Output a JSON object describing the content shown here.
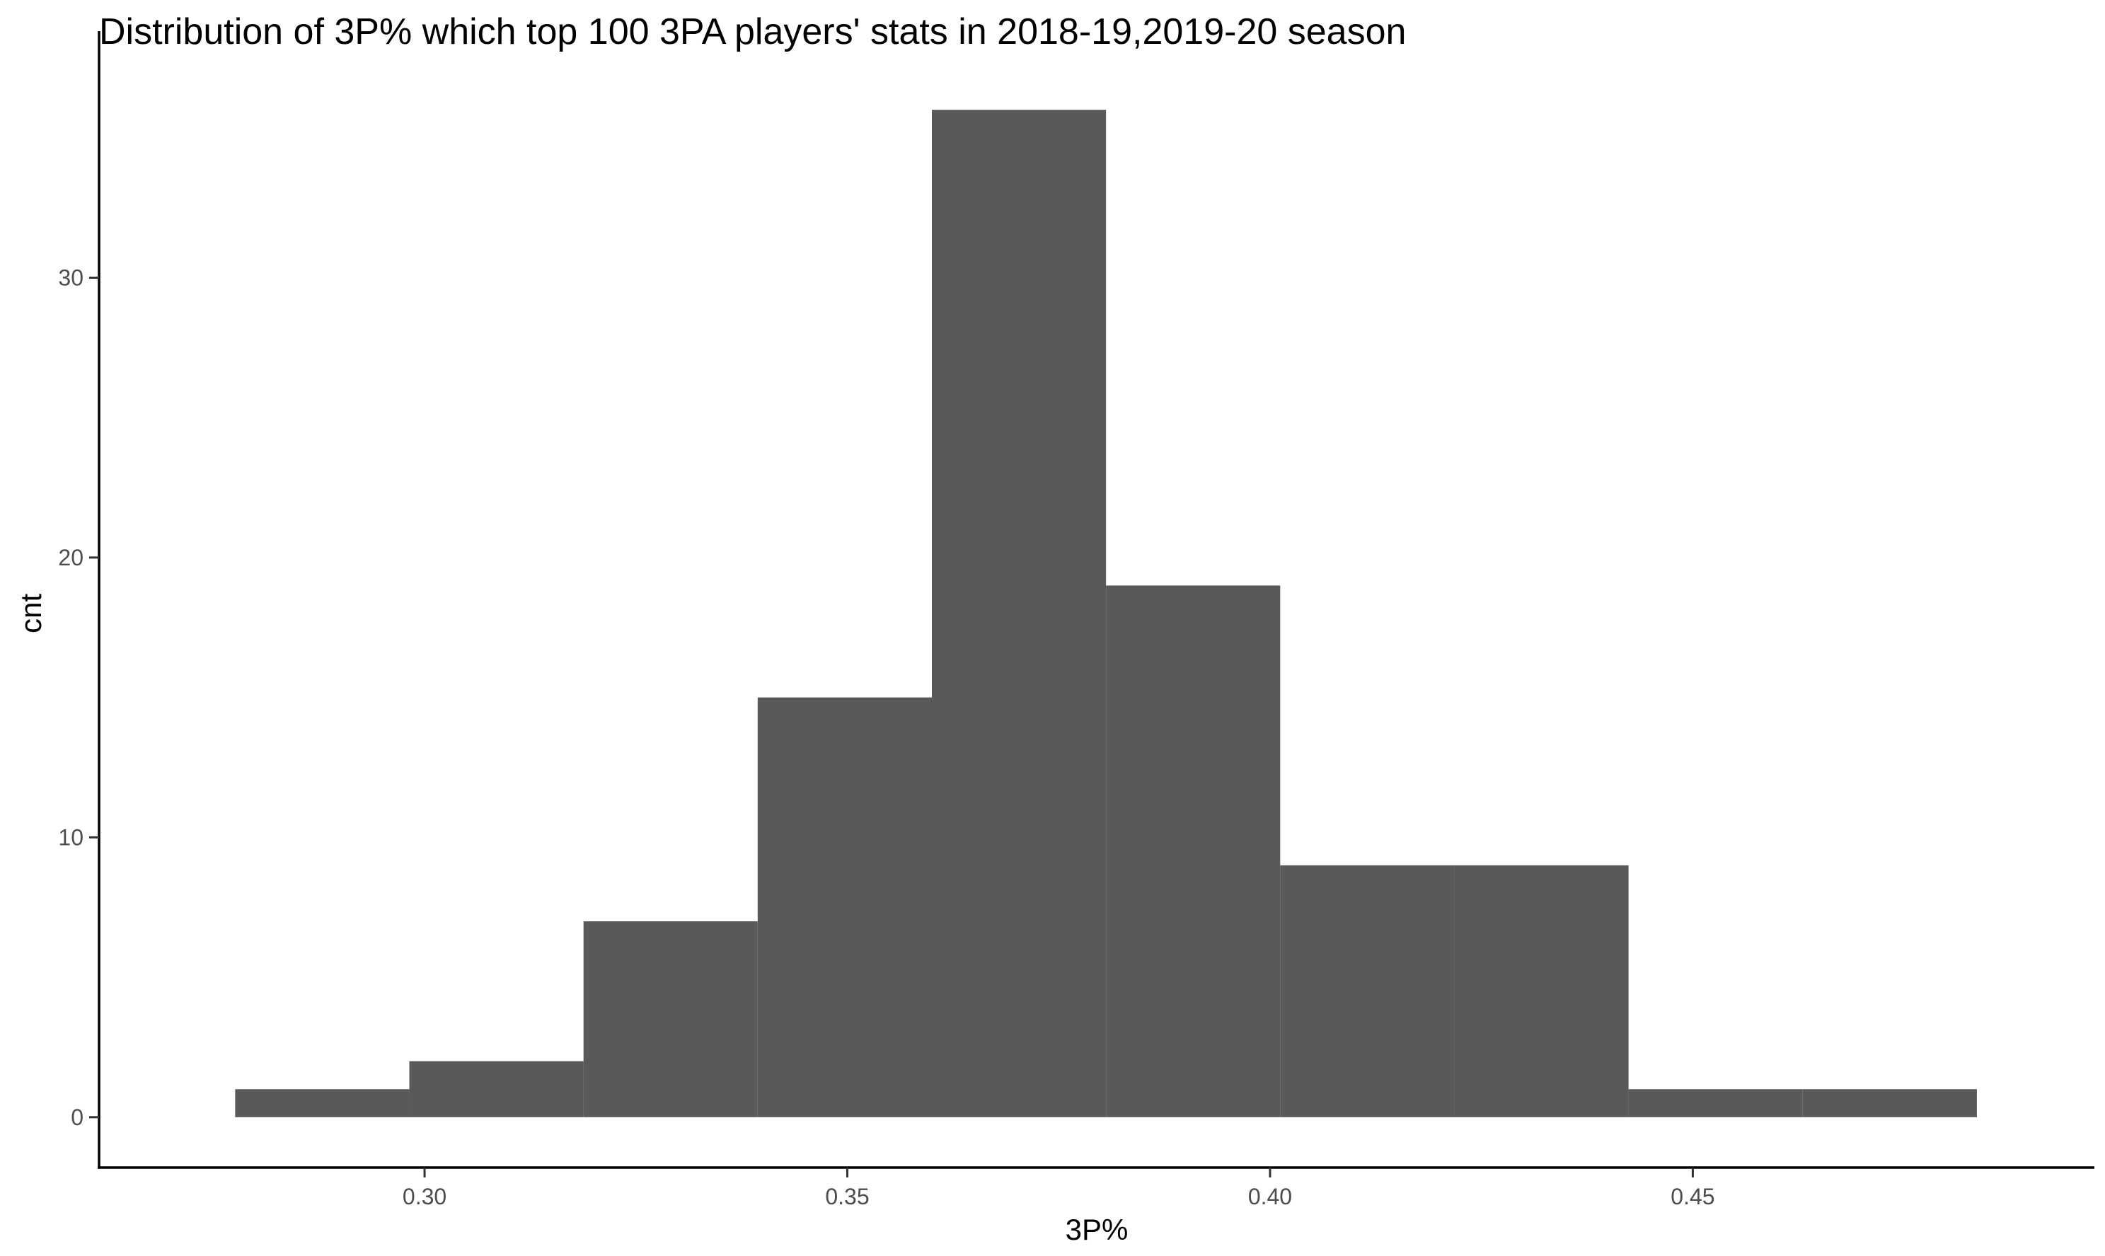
{
  "chart_data": {
    "type": "bar",
    "title": "Distribution of 3P% which top 100 3PA players' stats in 2018-19,2019-20 season",
    "xlabel": "3P%",
    "ylabel": "cnt",
    "xlim": [
      0.2615,
      0.4975
    ],
    "ylim": [
      -1.8,
      37.8
    ],
    "x_ticks": [
      0.3,
      0.35,
      0.4,
      0.45
    ],
    "x_tick_labels": [
      "0.30",
      "0.35",
      "0.40",
      "0.45"
    ],
    "y_ticks": [
      0,
      10,
      20,
      30
    ],
    "y_tick_labels": [
      "0",
      "10",
      "20",
      "30"
    ],
    "bins": [
      {
        "x0": 0.2776,
        "x1": 0.2982,
        "count": 1
      },
      {
        "x0": 0.2982,
        "x1": 0.3188,
        "count": 2
      },
      {
        "x0": 0.3188,
        "x1": 0.3394,
        "count": 7
      },
      {
        "x0": 0.3394,
        "x1": 0.36,
        "count": 15
      },
      {
        "x0": 0.36,
        "x1": 0.3806,
        "count": 36
      },
      {
        "x0": 0.3806,
        "x1": 0.4012,
        "count": 19
      },
      {
        "x0": 0.4012,
        "x1": 0.4218,
        "count": 9
      },
      {
        "x0": 0.4218,
        "x1": 0.4424,
        "count": 9
      },
      {
        "x0": 0.4424,
        "x1": 0.463,
        "count": 1
      },
      {
        "x0": 0.463,
        "x1": 0.4836,
        "count": 1
      }
    ],
    "bar_color": "#595959",
    "grid": false,
    "legend": "none"
  }
}
